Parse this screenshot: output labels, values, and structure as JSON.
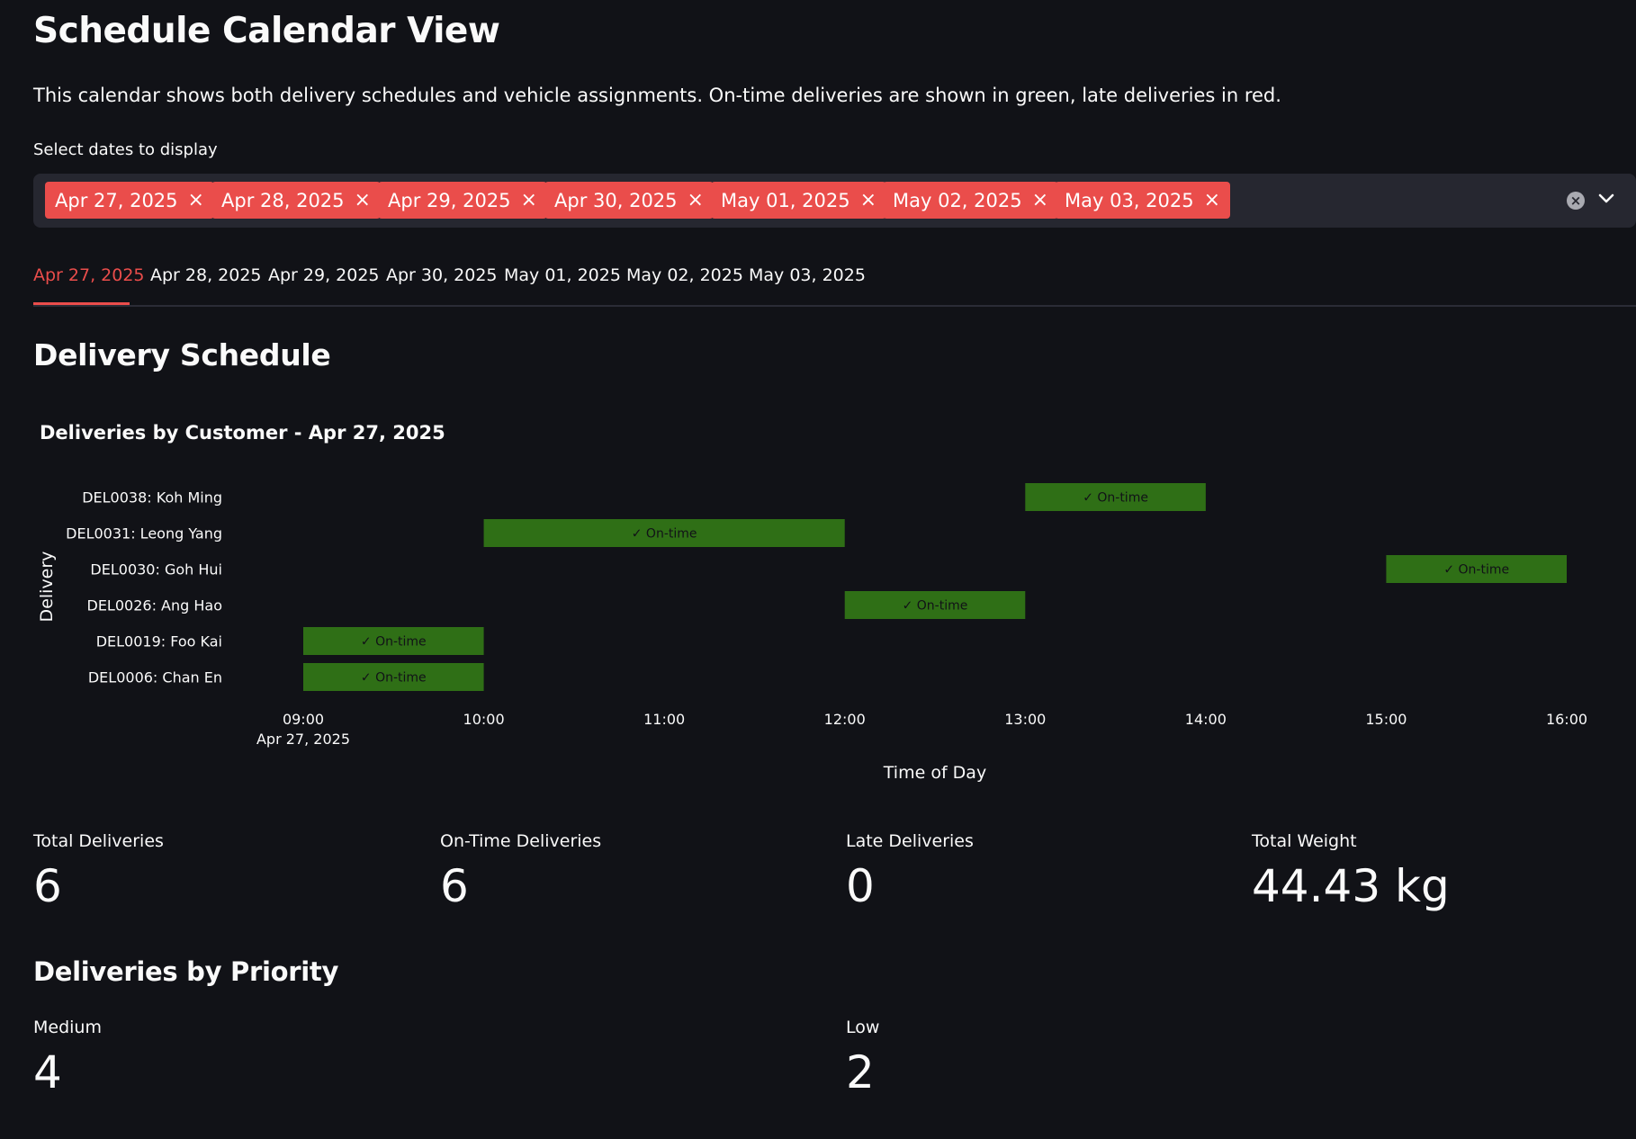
{
  "page": {
    "title": "Schedule Calendar View",
    "intro": "This calendar shows both delivery schedules and vehicle assignments. On-time deliveries are shown in green, late deliveries in red.",
    "select_label": "Select dates to display"
  },
  "selected_dates": [
    "Apr 27, 2025",
    "Apr 28, 2025",
    "Apr 29, 2025",
    "Apr 30, 2025",
    "May 01, 2025",
    "May 02, 2025",
    "May 03, 2025"
  ],
  "chip_remove_glyph": "×",
  "clear_glyph": "×",
  "tabs": [
    "Apr 27, 2025",
    "Apr 28, 2025",
    "Apr 29, 2025",
    "Apr 30, 2025",
    "May 01, 2025",
    "May 02, 2025",
    "May 03, 2025"
  ],
  "active_tab": "Apr 27, 2025",
  "section": {
    "delivery_schedule": "Delivery Schedule",
    "priority": "Deliveries by Priority"
  },
  "colors": {
    "accent": "#ea4d4b",
    "ontime": "#2f6f16",
    "late": "#c0392b",
    "background": "#111217"
  },
  "icons": {
    "clear": "clear-icon",
    "chevron": "chevron-down-icon",
    "chip_remove": "close-icon"
  },
  "chart_data": {
    "type": "timeline",
    "title": "Deliveries by Customer - Apr 27, 2025",
    "xlabel": "Time of Day",
    "ylabel": "Delivery",
    "x_ticks": [
      "09:00",
      "10:00",
      "11:00",
      "12:00",
      "13:00",
      "14:00",
      "15:00",
      "16:00"
    ],
    "x_tick_sublabel": "Apr 27, 2025",
    "xlim": [
      "09:00",
      "16:00"
    ],
    "categories": [
      "DEL0038: Koh Ming",
      "DEL0031: Leong Yang",
      "DEL0030: Goh Hui",
      "DEL0026: Ang Hao",
      "DEL0019: Foo Kai",
      "DEL0006: Chan En"
    ],
    "bars": [
      {
        "delivery": "DEL0038: Koh Ming",
        "start": "13:00",
        "end": "14:00",
        "label": "✓ On-time",
        "status": "on-time"
      },
      {
        "delivery": "DEL0031: Leong Yang",
        "start": "10:00",
        "end": "12:00",
        "label": "✓ On-time",
        "status": "on-time"
      },
      {
        "delivery": "DEL0030: Goh Hui",
        "start": "15:00",
        "end": "16:00",
        "label": "✓ On-time",
        "status": "on-time"
      },
      {
        "delivery": "DEL0026: Ang Hao",
        "start": "12:00",
        "end": "13:00",
        "label": "✓ On-time",
        "status": "on-time"
      },
      {
        "delivery": "DEL0019: Foo Kai",
        "start": "09:00",
        "end": "10:00",
        "label": "✓ On-time",
        "status": "on-time"
      },
      {
        "delivery": "DEL0006: Chan En",
        "start": "09:00",
        "end": "10:00",
        "label": "✓ On-time",
        "status": "on-time"
      }
    ],
    "grid": false,
    "legend": "none"
  },
  "metrics": [
    {
      "label": "Total Deliveries",
      "value": "6"
    },
    {
      "label": "On-Time Deliveries",
      "value": "6"
    },
    {
      "label": "Late Deliveries",
      "value": "0"
    },
    {
      "label": "Total Weight",
      "value": "44.43 kg"
    }
  ],
  "priority_metrics": [
    {
      "label": "Medium",
      "value": "4"
    },
    {
      "label": "Low",
      "value": "2"
    }
  ]
}
